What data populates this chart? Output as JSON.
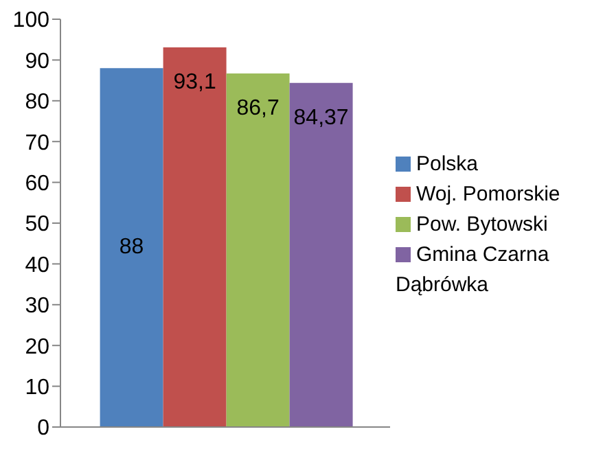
{
  "chart_data": {
    "type": "bar",
    "categories": [
      null
    ],
    "series": [
      {
        "name": "Polska",
        "color": "#4f81bd",
        "values": [
          88
        ],
        "value_labels": [
          "88"
        ]
      },
      {
        "name": "Woj. Pomorskie",
        "color": "#c0504d",
        "values": [
          93.1
        ],
        "value_labels": [
          "93,1"
        ]
      },
      {
        "name": "Pow. Bytowski",
        "color": "#9bbb59",
        "values": [
          86.7
        ],
        "value_labels": [
          "86,7"
        ]
      },
      {
        "name": "Gmina Czarna Dąbrówka",
        "color": "#8064a2",
        "values": [
          84.37
        ],
        "value_labels": [
          "84,37"
        ]
      }
    ],
    "ylim": [
      0,
      100
    ],
    "yticks": [
      0,
      10,
      20,
      30,
      40,
      50,
      60,
      70,
      80,
      90,
      100
    ],
    "grid": false,
    "legend": "right"
  }
}
